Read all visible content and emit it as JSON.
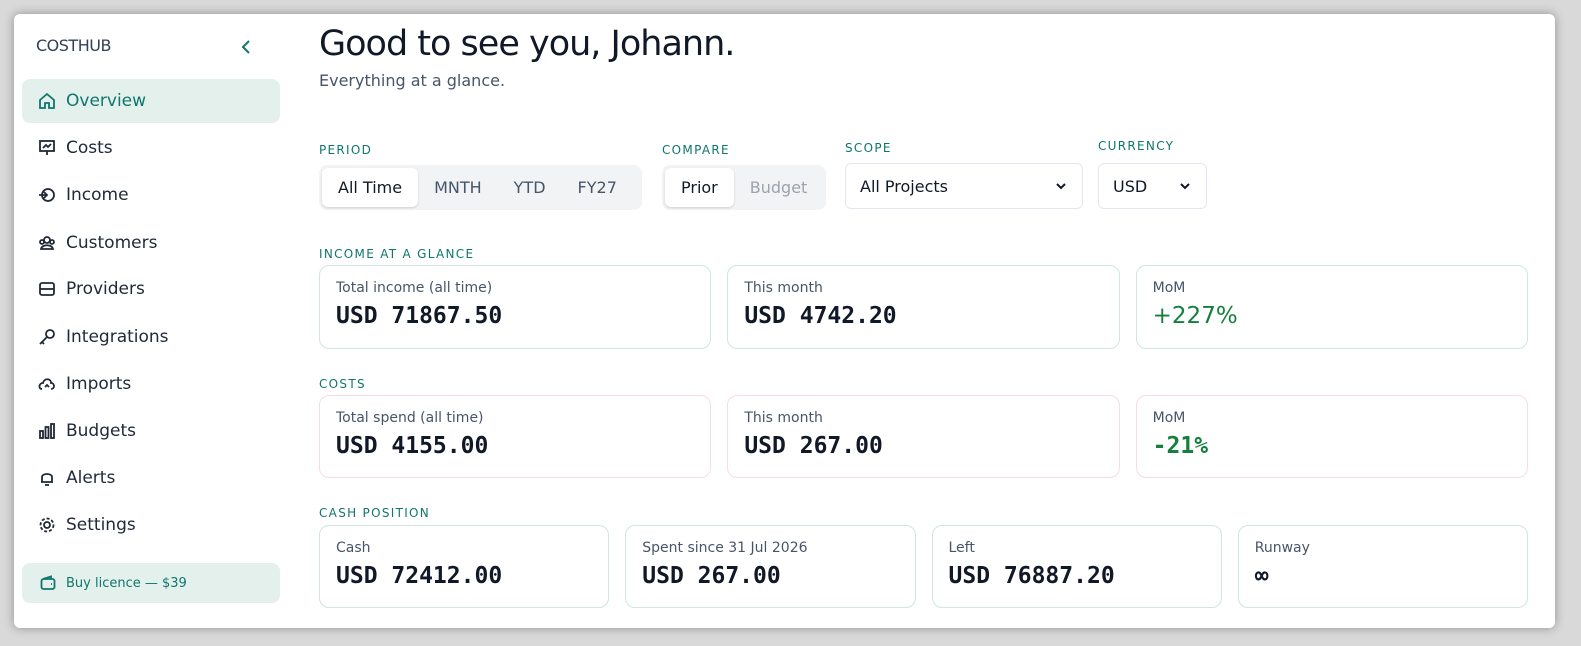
{
  "sidebar": {
    "brand": "COSTHUB",
    "nav": [
      "Overview",
      "Costs",
      "Income",
      "Customers",
      "Providers",
      "Integrations",
      "Imports",
      "Budgets",
      "Alerts",
      "Settings"
    ],
    "buy": "Buy licence — $39"
  },
  "header": {
    "title": "Good to see you, Johann.",
    "subtitle": "Everything at a glance."
  },
  "filters": {
    "period": {
      "label": "PERIOD",
      "options": [
        "All Time",
        "MNTH",
        "YTD",
        "FY27"
      ]
    },
    "compare": {
      "label": "COMPARE",
      "options": [
        "Prior",
        "Budget"
      ]
    },
    "scope": {
      "label": "SCOPE",
      "value": "All Projects"
    },
    "currency": {
      "label": "CURRENCY",
      "value": "USD"
    }
  },
  "sections": [
    {
      "title": "INCOME AT A GLANCE",
      "cards": [
        {
          "label": "Total income (all time)",
          "value": "USD 71867.50"
        },
        {
          "label": "This month",
          "value": "USD 4742.20"
        },
        {
          "label": "MoM",
          "value": "+227%"
        }
      ]
    },
    {
      "title": "COSTS",
      "cards": [
        {
          "label": "Total spend (all time)",
          "value": "USD 4155.00"
        },
        {
          "label": "This month",
          "value": "USD 267.00"
        },
        {
          "label": "MoM",
          "value": "-21%"
        }
      ]
    },
    {
      "title": "CASH POSITION",
      "cards": [
        {
          "label": "Cash",
          "value": "USD 72412.00"
        },
        {
          "label": "Spent since 31 Jul 2026",
          "value": "USD 267.00"
        },
        {
          "label": "Left",
          "value": "USD 76887.20"
        },
        {
          "label": "Runway",
          "value": "∞"
        }
      ]
    }
  ]
}
